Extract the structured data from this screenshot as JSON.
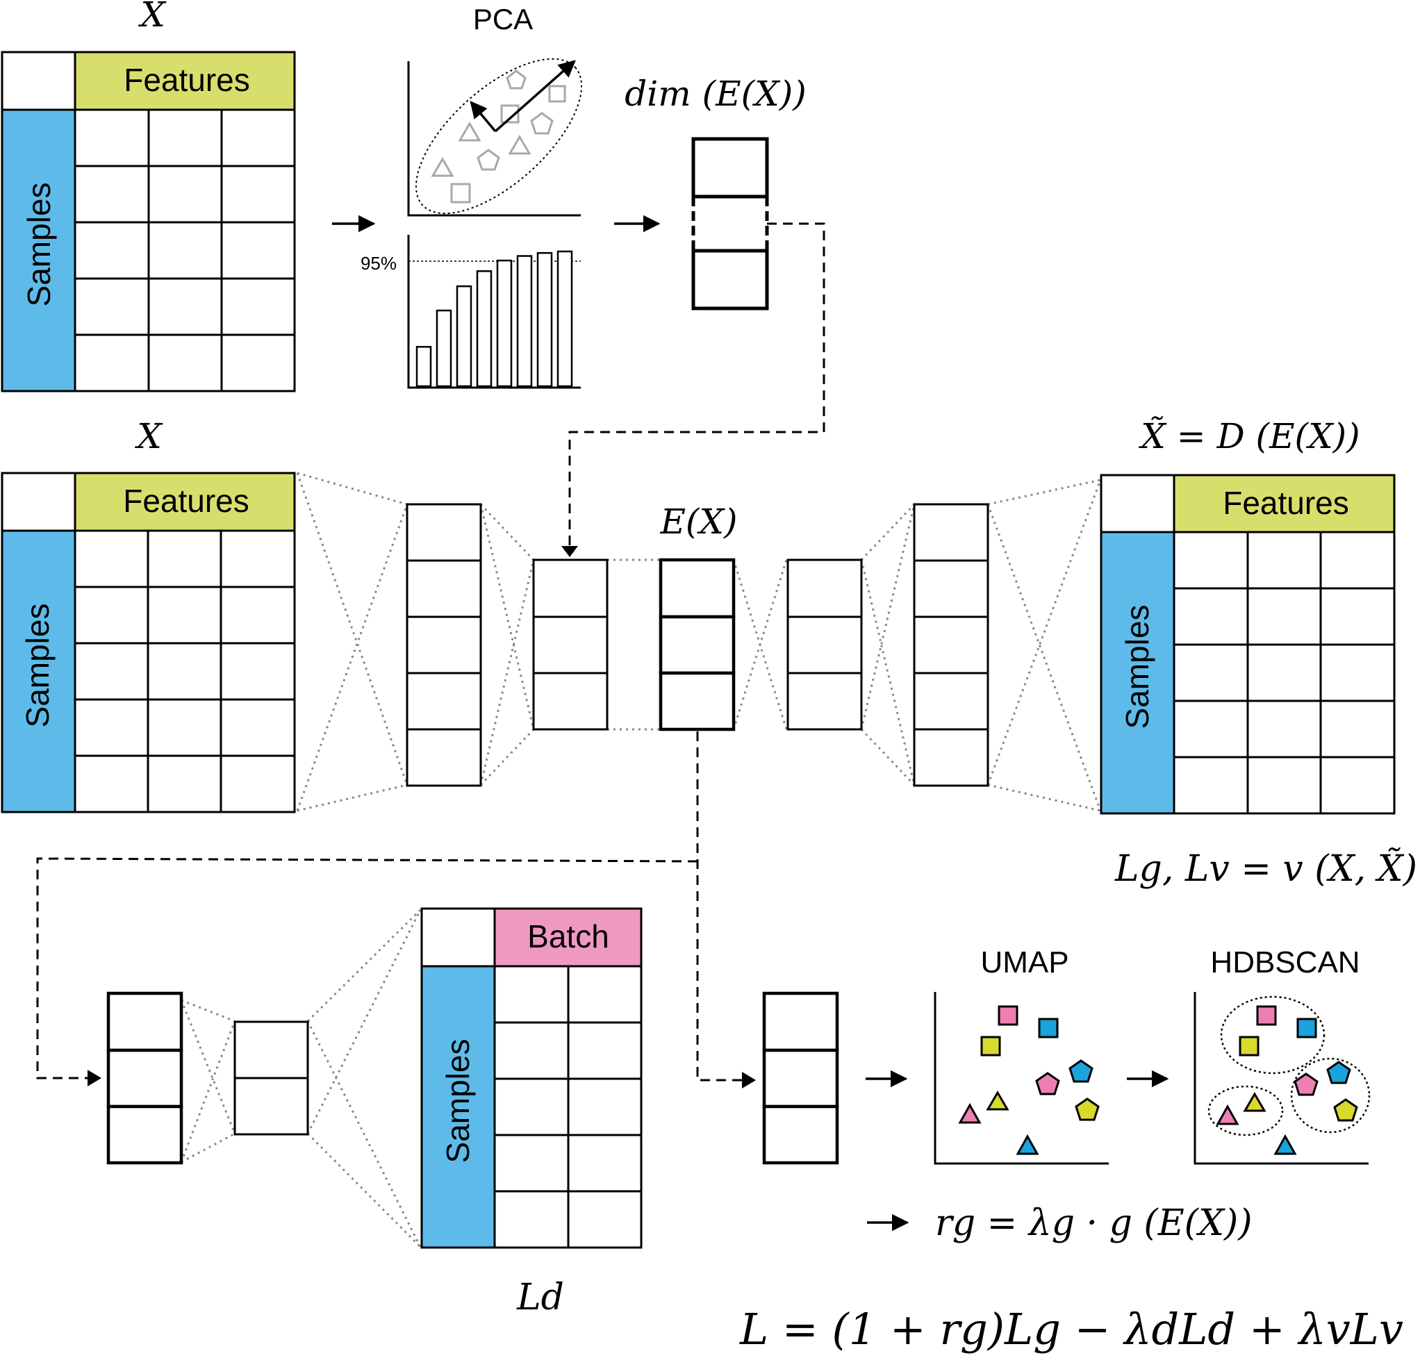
{
  "colors": {
    "samples": "#5ebbe9",
    "features": "#d8de6b",
    "batch": "#ef99c2",
    "pink": "#ee7fb2",
    "blue": "#1aa3dc",
    "yellow": "#d9d92e",
    "gray": "#9a9a9a"
  },
  "pca": {
    "title": "PCA",
    "threshold_label": "95%",
    "cumulative_variance_bars": [
      0.26,
      0.5,
      0.66,
      0.76,
      0.83,
      0.86,
      0.88,
      0.89
    ]
  },
  "labels": {
    "x_top": "X",
    "x_mid": "X",
    "dim_ex": "dim (E(X))",
    "ex": "E(X)",
    "xtilde": "X̃ = D (E(X))",
    "loss_recon": "Lg,  Lv = v (X, X̃)",
    "ld": "Ld",
    "rg": "rg = λg · g (E(X))",
    "total_loss": "L = (1 + rg)Lg − λdLd + λvLv"
  },
  "tables": {
    "features_header": "Features",
    "samples_header": "Samples",
    "batch_header": "Batch"
  },
  "clustering": {
    "umap_title": "UMAP",
    "hdbscan_title": "HDBSCAN"
  }
}
